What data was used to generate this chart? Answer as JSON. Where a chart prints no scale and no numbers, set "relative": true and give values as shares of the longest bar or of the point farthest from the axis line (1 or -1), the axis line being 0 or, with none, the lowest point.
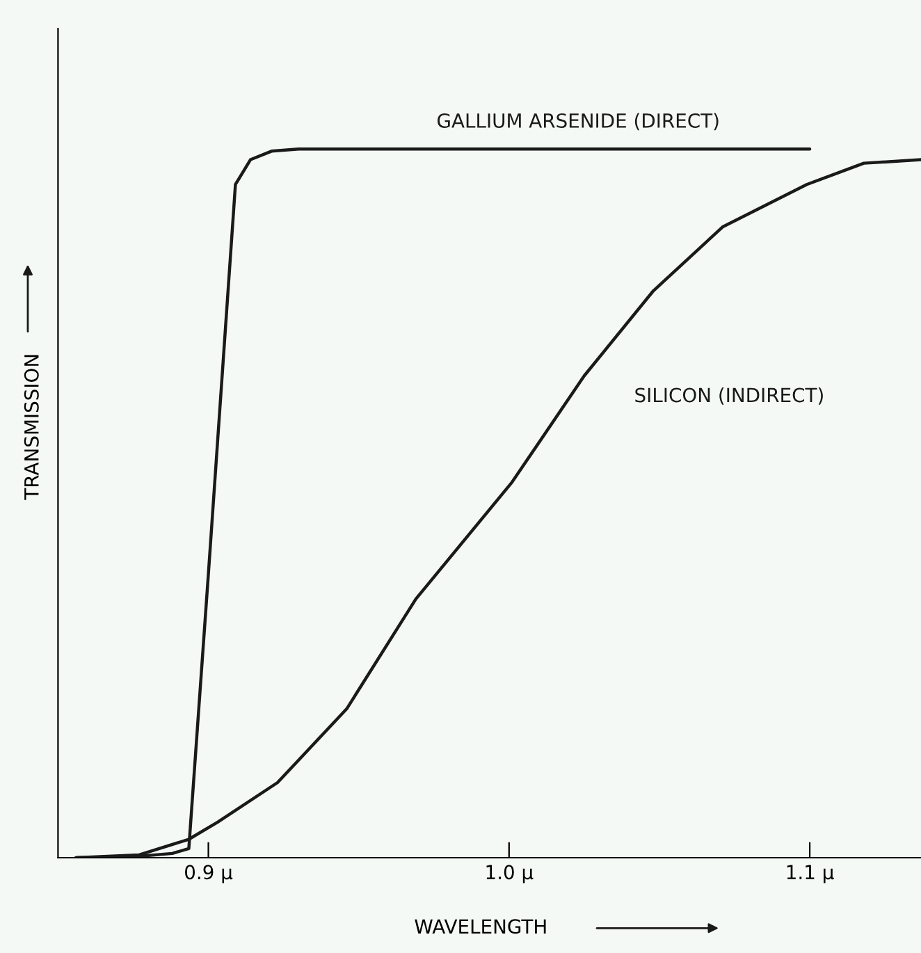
{
  "chart_data": {
    "type": "line",
    "relative": true,
    "xlabel": "WAVELENGTH",
    "ylabel": "TRANSMISSION",
    "xlim": [
      0.85,
      1.137
    ],
    "xticks": [
      {
        "value": 0.9,
        "label": "0.9 μ"
      },
      {
        "value": 1.0,
        "label": "1.0 μ"
      },
      {
        "value": 1.1,
        "label": "1.1 μ"
      }
    ],
    "grid": false,
    "legend": false,
    "marker": "none",
    "line_style": "solid",
    "series": [
      {
        "name": "GALLIUM ARSENIDE (DIRECT)",
        "color": "#1a1a1a",
        "x": [
          0.856,
          0.877,
          0.888,
          0.8935,
          0.9,
          0.909,
          0.914,
          0.921,
          0.93,
          1.1
        ],
        "values": [
          0,
          0.002,
          0.006,
          0.013,
          0.4,
          0.95,
          0.985,
          0.997,
          1.0,
          1.0
        ]
      },
      {
        "name": "SILICON (INDIRECT)",
        "color": "#1a1a1a",
        "x": [
          0.856,
          0.877,
          0.8935,
          0.903,
          0.923,
          0.946,
          0.969,
          1.001,
          1.025,
          1.048,
          1.071,
          1.099,
          1.118,
          1.137
        ],
        "values": [
          0,
          0.004,
          0.026,
          0.05,
          0.106,
          0.21,
          0.365,
          0.53,
          0.68,
          0.8,
          0.89,
          0.95,
          0.98,
          0.985
        ]
      }
    ]
  }
}
